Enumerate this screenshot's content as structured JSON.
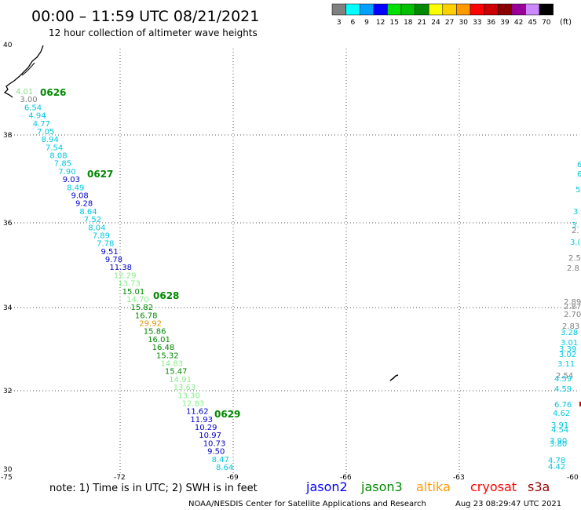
{
  "header": {
    "title": "00:00 – 11:59 UTC 08/21/2021",
    "subtitle": "12 hour collection of altimeter wave heights"
  },
  "legend": {
    "swatches": [
      {
        "label": "3",
        "color": "#808080"
      },
      {
        "label": "6",
        "color": "#00ffff"
      },
      {
        "label": "9",
        "color": "#00a0ff"
      },
      {
        "label": "12",
        "color": "#0000ff"
      },
      {
        "label": "15",
        "color": "#00e000"
      },
      {
        "label": "18",
        "color": "#00c000"
      },
      {
        "label": "21",
        "color": "#008800"
      },
      {
        "label": "24",
        "color": "#ffff00"
      },
      {
        "label": "27",
        "color": "#ffd000"
      },
      {
        "label": "30",
        "color": "#ff9900"
      },
      {
        "label": "33",
        "color": "#ff0000"
      },
      {
        "label": "36",
        "color": "#cc0000"
      },
      {
        "label": "39",
        "color": "#880000"
      },
      {
        "label": "42",
        "color": "#990099"
      },
      {
        "label": "45",
        "color": "#cc88ff"
      },
      {
        "label": "70",
        "color": "#000000"
      }
    ],
    "unit": "(ft)"
  },
  "axes": {
    "lon_ticks": [
      "-75",
      "-72",
      "-69",
      "-66",
      "-63",
      "-60"
    ],
    "lat_ticks": [
      "40",
      "38",
      "36",
      "34",
      "32",
      "30"
    ]
  },
  "times": [
    "0626",
    "0627",
    "0628",
    "0629"
  ],
  "track": [
    {
      "v": "4.01",
      "c": "#88dd88"
    },
    {
      "v": "3.00",
      "c": "#808080"
    },
    {
      "v": "6.54",
      "c": "#00c8e0"
    },
    {
      "v": "4.94",
      "c": "#00c8e0"
    },
    {
      "v": "4.77",
      "c": "#00c8e0"
    },
    {
      "v": "7.05",
      "c": "#00c8e0"
    },
    {
      "v": "8.94",
      "c": "#00c8e0"
    },
    {
      "v": "7.54",
      "c": "#00c8e0"
    },
    {
      "v": "8.08",
      "c": "#00c8e0"
    },
    {
      "v": "7.85",
      "c": "#00c8e0"
    },
    {
      "v": "7.90",
      "c": "#00c8e0"
    },
    {
      "v": "9.03",
      "c": "#0000cc"
    },
    {
      "v": "8.49",
      "c": "#00c8e0"
    },
    {
      "v": "9.08",
      "c": "#0000cc"
    },
    {
      "v": "9.28",
      "c": "#0000cc"
    },
    {
      "v": "8.64",
      "c": "#00c8e0"
    },
    {
      "v": "7.52",
      "c": "#00c8e0"
    },
    {
      "v": "8.04",
      "c": "#00c8e0"
    },
    {
      "v": "7.89",
      "c": "#00c8e0"
    },
    {
      "v": "7.78",
      "c": "#00c8e0"
    },
    {
      "v": "9.51",
      "c": "#0000cc"
    },
    {
      "v": "9.78",
      "c": "#0000cc"
    },
    {
      "v": "11.38",
      "c": "#0000cc"
    },
    {
      "v": "12.29",
      "c": "#88ee88"
    },
    {
      "v": "13.73",
      "c": "#88ee88"
    },
    {
      "v": "15.01",
      "c": "#008800"
    },
    {
      "v": "14.70",
      "c": "#88ee88"
    },
    {
      "v": "15.82",
      "c": "#008800"
    },
    {
      "v": "16.78",
      "c": "#008800"
    },
    {
      "v": "29.92",
      "c": "#e09000"
    },
    {
      "v": "15.86",
      "c": "#008800"
    },
    {
      "v": "16.01",
      "c": "#008800"
    },
    {
      "v": "16.48",
      "c": "#008800"
    },
    {
      "v": "15.32",
      "c": "#008800"
    },
    {
      "v": "14.83",
      "c": "#88ee88"
    },
    {
      "v": "15.47",
      "c": "#008800"
    },
    {
      "v": "14.91",
      "c": "#88ee88"
    },
    {
      "v": "13.63",
      "c": "#88ee88"
    },
    {
      "v": "13.30",
      "c": "#88ee88"
    },
    {
      "v": "12.83",
      "c": "#88ee88"
    },
    {
      "v": "11.62",
      "c": "#0000cc"
    },
    {
      "v": "11.93",
      "c": "#0000cc"
    },
    {
      "v": "10.29",
      "c": "#0000cc"
    },
    {
      "v": "10.97",
      "c": "#0000cc"
    },
    {
      "v": "10.73",
      "c": "#0000cc"
    },
    {
      "v": "9.50",
      "c": "#0000cc"
    },
    {
      "v": "8.47",
      "c": "#00c8e0"
    },
    {
      "v": "8.64",
      "c": "#00c8e0"
    }
  ],
  "east_labels": [
    {
      "v": "6",
      "c": "#00c8e0"
    },
    {
      "v": "6",
      "c": "#00c8e0"
    },
    {
      "v": "5",
      "c": "#00c8e0"
    },
    {
      "v": "3.",
      "c": "#00c8e0"
    },
    {
      "v": "3.",
      "c": "#00c8e0"
    },
    {
      "v": "2.",
      "c": "#808080"
    },
    {
      "v": "3.(",
      "c": "#00c8e0"
    },
    {
      "v": "2.5",
      "c": "#808080"
    },
    {
      "v": "2.8",
      "c": "#808080"
    },
    {
      "v": "2.89",
      "c": "#808080"
    },
    {
      "v": "2.87",
      "c": "#808080"
    },
    {
      "v": "2.70",
      "c": "#808080"
    },
    {
      "v": "2.83",
      "c": "#808080"
    },
    {
      "v": "3.28",
      "c": "#00c8e0"
    },
    {
      "v": "3.01",
      "c": "#00c8e0"
    },
    {
      "v": "3.39",
      "c": "#00c8e0"
    },
    {
      "v": "3.02",
      "c": "#00c8e0"
    },
    {
      "v": "3.11",
      "c": "#00c8e0"
    },
    {
      "v": "2.54",
      "c": "#808080"
    },
    {
      "v": "4.59",
      "c": "#00c8e0"
    },
    {
      "v": "4.59",
      "c": "#00c8e0"
    },
    {
      "v": "6.76",
      "c": "#00c8e0"
    },
    {
      "v": "4.62",
      "c": "#00c8e0"
    },
    {
      "v": "3.91",
      "c": "#00c8e0"
    },
    {
      "v": "4.54",
      "c": "#00c8e0"
    },
    {
      "v": "3.90",
      "c": "#00c8e0"
    },
    {
      "v": "3.80",
      "c": "#00c8e0"
    },
    {
      "v": "4.78",
      "c": "#00c8e0"
    },
    {
      "v": "4.42",
      "c": "#00c8e0"
    }
  ],
  "footer": {
    "note": "note: 1) Time is in UTC; 2) SWH is in feet",
    "satellites": [
      {
        "name": "jason2",
        "color": "#0000ff"
      },
      {
        "name": "jason3",
        "color": "#008800"
      },
      {
        "name": "altika",
        "color": "#ff9900"
      },
      {
        "name": "cryosat",
        "color": "#ff0000"
      },
      {
        "name": "s3a",
        "color": "#990000"
      }
    ],
    "credit": "NOAA/NESDIS Center for Satellite Applications and Research",
    "timestamp": "Aug 23 08:29:47 UTC 2021"
  }
}
